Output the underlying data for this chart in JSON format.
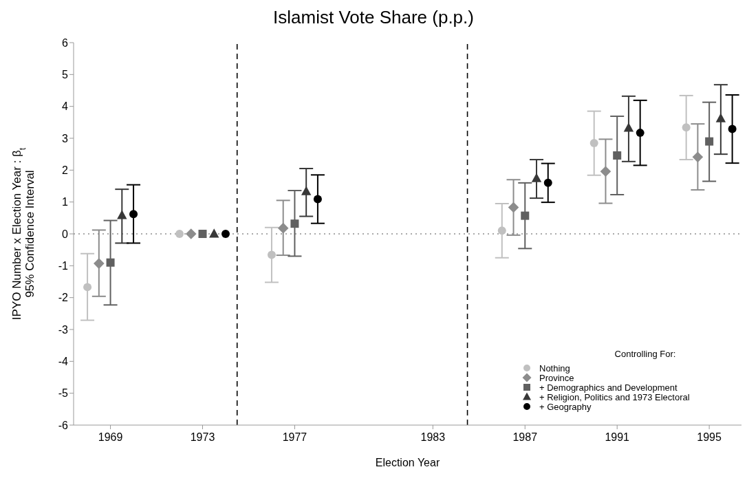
{
  "chart_data": {
    "type": "scatter",
    "title": "Islamist Vote Share (p.p.)",
    "xlabel": "Election Year",
    "ylabel": "IPYO Number x Election Year : β$_{t}$\n95% Confidence Interval",
    "legend_title": "Controlling For:",
    "legend": "bottom right",
    "xlim": [
      1967.4,
      1996.4
    ],
    "xticks": [
      1969,
      1973,
      1977,
      1983,
      1987,
      1991,
      1995
    ],
    "ylim": [
      -6,
      6
    ],
    "yticks": [
      -6,
      -5,
      -4,
      -3,
      -2,
      -1,
      0,
      1,
      2,
      3,
      4,
      5,
      6
    ],
    "ref_lines": [
      {
        "axis": "x",
        "value": 1974.5,
        "line_style": "dashed",
        "color": "#000000"
      },
      {
        "axis": "x",
        "value": 1984.5,
        "line_style": "dashed",
        "color": "#000000"
      },
      {
        "axis": "y",
        "value": 0,
        "line_style": "dotted",
        "color": "#555555"
      }
    ],
    "series": [
      {
        "name": "Nothing",
        "color": "#c0c0c0",
        "marker": "circle",
        "x": [
          1968,
          1972,
          1976,
          1986,
          1990,
          1994
        ],
        "values": [
          -1.67,
          0,
          -0.66,
          0.1,
          2.85,
          3.34
        ],
        "errors": [
          [
            -2.71,
            -0.62
          ],
          null,
          [
            -1.52,
            0.2
          ],
          [
            -0.75,
            0.95
          ],
          [
            1.84,
            3.85
          ],
          [
            2.33,
            4.34
          ]
        ]
      },
      {
        "name": "Province",
        "color": "#8c8c8c",
        "marker": "diamond",
        "x": [
          1968.5,
          1972.5,
          1976.5,
          1986.5,
          1990.5,
          1994.5
        ],
        "values": [
          -0.93,
          0,
          0.18,
          0.83,
          1.96,
          2.41
        ],
        "errors": [
          [
            -1.96,
            0.12
          ],
          null,
          [
            -0.67,
            1.05
          ],
          [
            -0.04,
            1.7
          ],
          [
            0.96,
            2.97
          ],
          [
            1.38,
            3.45
          ]
        ]
      },
      {
        "name": "+ Demographics and Development",
        "color": "#606060",
        "marker": "square",
        "x": [
          1969,
          1973,
          1977,
          1987,
          1991,
          1995
        ],
        "values": [
          -0.9,
          0,
          0.32,
          0.57,
          2.46,
          2.9
        ],
        "errors": [
          [
            -2.23,
            0.42
          ],
          null,
          [
            -0.7,
            1.36
          ],
          [
            -0.46,
            1.6
          ],
          [
            1.23,
            3.69
          ],
          [
            1.65,
            4.13
          ]
        ]
      },
      {
        "name": "+ Religion, Politics and 1973 Electoral",
        "color": "#383838",
        "marker": "triangle",
        "x": [
          1969.5,
          1973.5,
          1977.5,
          1987.5,
          1991.5,
          1995.5
        ],
        "values": [
          0.58,
          0,
          1.33,
          1.74,
          3.32,
          3.62
        ],
        "errors": [
          [
            -0.29,
            1.4
          ],
          null,
          [
            0.55,
            2.05
          ],
          [
            1.12,
            2.33
          ],
          [
            2.27,
            4.32
          ],
          [
            2.5,
            4.68
          ]
        ]
      },
      {
        "name": "+ Geography",
        "color": "#000000",
        "marker": "circle",
        "x": [
          1970,
          1974,
          1978,
          1988,
          1992,
          1996
        ],
        "values": [
          0.62,
          0,
          1.09,
          1.6,
          3.17,
          3.29
        ],
        "errors": [
          [
            -0.29,
            1.54
          ],
          null,
          [
            0.33,
            1.85
          ],
          [
            0.99,
            2.21
          ],
          [
            2.15,
            4.19
          ],
          [
            2.22,
            4.36
          ]
        ]
      }
    ]
  }
}
